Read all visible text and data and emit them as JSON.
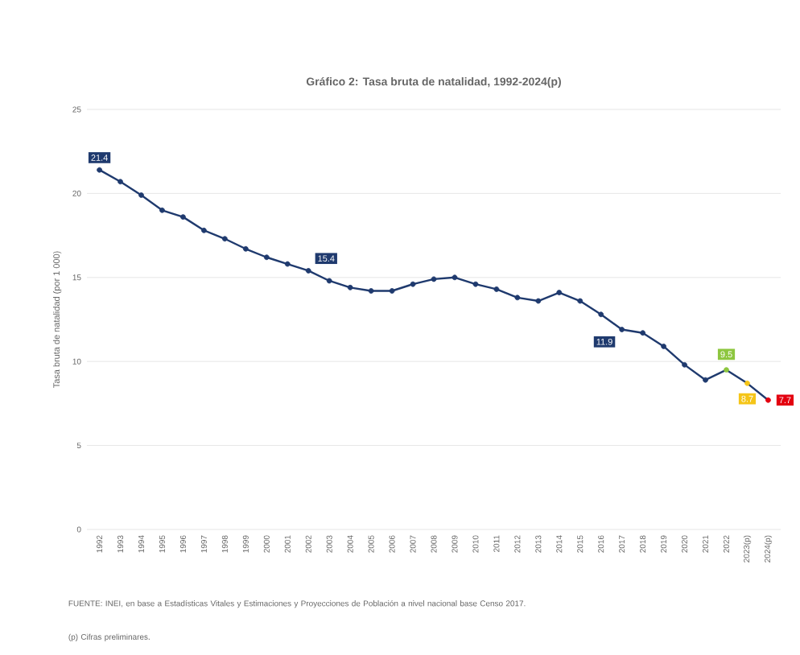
{
  "chart_data": {
    "type": "line",
    "title": "Gráfico 2: Tasa bruta de natalidad, 1992-2024(p)",
    "ylabel": "Tasa bruta de natalidad (por 1 000)",
    "categories": [
      "1992",
      "1993",
      "1994",
      "1995",
      "1996",
      "1997",
      "1998",
      "1999",
      "2000",
      "2001",
      "2002",
      "2003",
      "2004",
      "2005",
      "2006",
      "2007",
      "2008",
      "2009",
      "2010",
      "2011",
      "2012",
      "2013",
      "2014",
      "2015",
      "2016",
      "2017",
      "2018",
      "2019",
      "2020",
      "2021",
      "2022",
      "2023(p)",
      "2024(p)"
    ],
    "series": [
      {
        "color": "#1f3a6e",
        "values": [
          21.4,
          20.7,
          19.9,
          19.0,
          18.6,
          17.8,
          17.3,
          16.7,
          16.2,
          15.8,
          15.4,
          14.8,
          14.4,
          14.2,
          14.2,
          14.6,
          14.9,
          15.0,
          14.6,
          14.3,
          13.8,
          13.6,
          14.1,
          13.6,
          12.8,
          11.9,
          11.7,
          10.9,
          9.8,
          8.9,
          9.5,
          8.7,
          7.7
        ],
        "colors": [
          "#1f3a6e",
          "#1f3a6e",
          "#1f3a6e",
          "#1f3a6e",
          "#1f3a6e",
          "#1f3a6e",
          "#1f3a6e",
          "#1f3a6e",
          "#1f3a6e",
          "#1f3a6e",
          "#1f3a6e",
          "#1f3a6e",
          "#1f3a6e",
          "#1f3a6e",
          "#1f3a6e",
          "#1f3a6e",
          "#1f3a6e",
          "#1f3a6e",
          "#1f3a6e",
          "#1f3a6e",
          "#1f3a6e",
          "#1f3a6e",
          "#1f3a6e",
          "#1f3a6e",
          "#1f3a6e",
          "#1f3a6e",
          "#1f3a6e",
          "#1f3a6e",
          "#1f3a6e",
          "#1f3a6e",
          "#8dc63f",
          "#f5c518",
          "#e3000f"
        ],
        "value_labels": [
          "21.4",
          null,
          null,
          null,
          null,
          null,
          null,
          null,
          null,
          null,
          "15.4",
          null,
          null,
          null,
          null,
          null,
          null,
          null,
          null,
          null,
          null,
          null,
          null,
          null,
          null,
          "11.9",
          null,
          null,
          null,
          null,
          "9.5",
          "8.7",
          "7.7"
        ]
      }
    ],
    "ylim": [
      0,
      25
    ],
    "yticks": [
      0,
      5,
      10,
      15,
      20,
      25
    ],
    "grid": "y",
    "marker": "circle",
    "line_style": "solid",
    "annotations": [
      "FUENTE: INEI, en base a Estadísticas Vitales y Estimaciones y Proyecciones de Población a nivel nacional base Censo 2017.",
      "(p) Cifras preliminares."
    ]
  }
}
